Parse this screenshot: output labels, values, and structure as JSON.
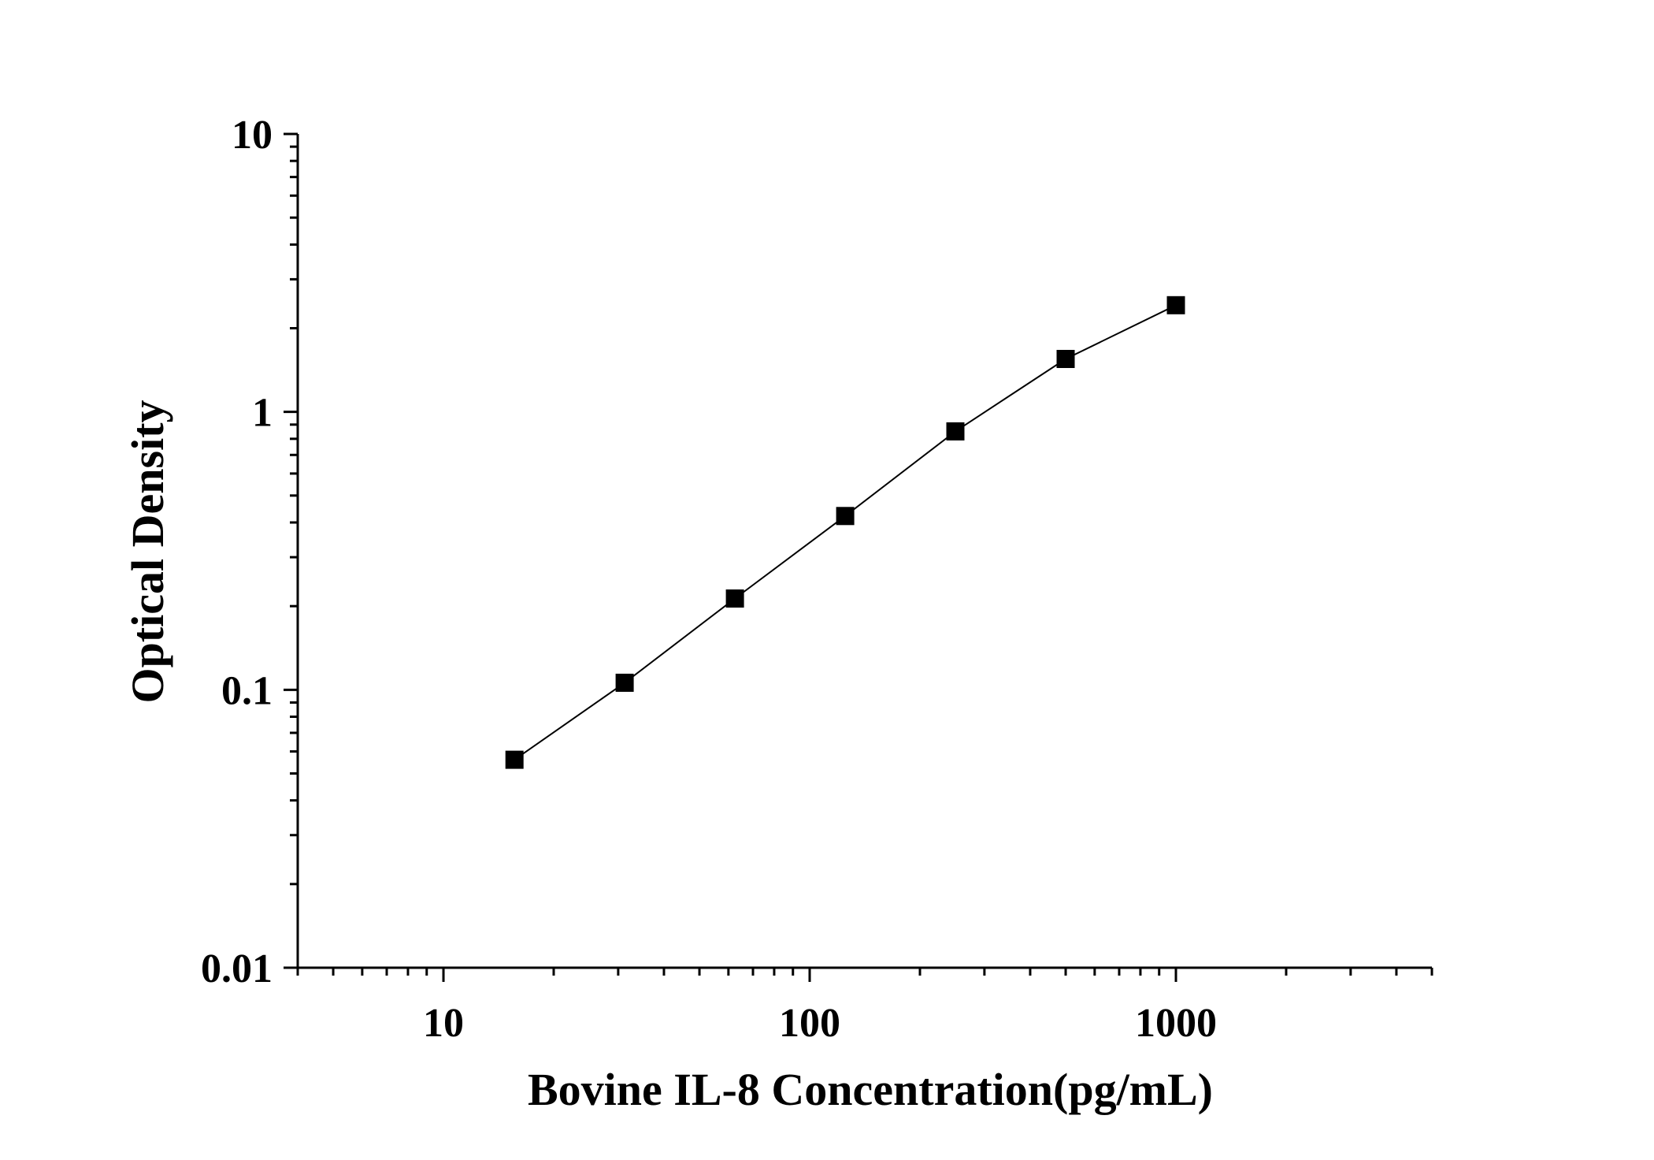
{
  "chart_data": {
    "type": "line",
    "title": "",
    "xlabel": "Bovine IL-8 Concentration(pg/mL)",
    "ylabel": "Optical Density",
    "x_scale": "log",
    "y_scale": "log",
    "xlim": [
      4,
      5000
    ],
    "ylim": [
      0.01,
      10
    ],
    "x_tick_labels": [
      "10",
      "100",
      "1000"
    ],
    "y_tick_labels": [
      "0.01",
      "0.1",
      "1",
      "10"
    ],
    "grid": false,
    "legend": "none",
    "series": [
      {
        "x": [
          15.625,
          31.25,
          62.5,
          125,
          250,
          500,
          1000
        ],
        "y": [
          0.056,
          0.106,
          0.213,
          0.422,
          0.851,
          1.55,
          2.42
        ],
        "marker": "square",
        "color": "#000000"
      }
    ]
  }
}
